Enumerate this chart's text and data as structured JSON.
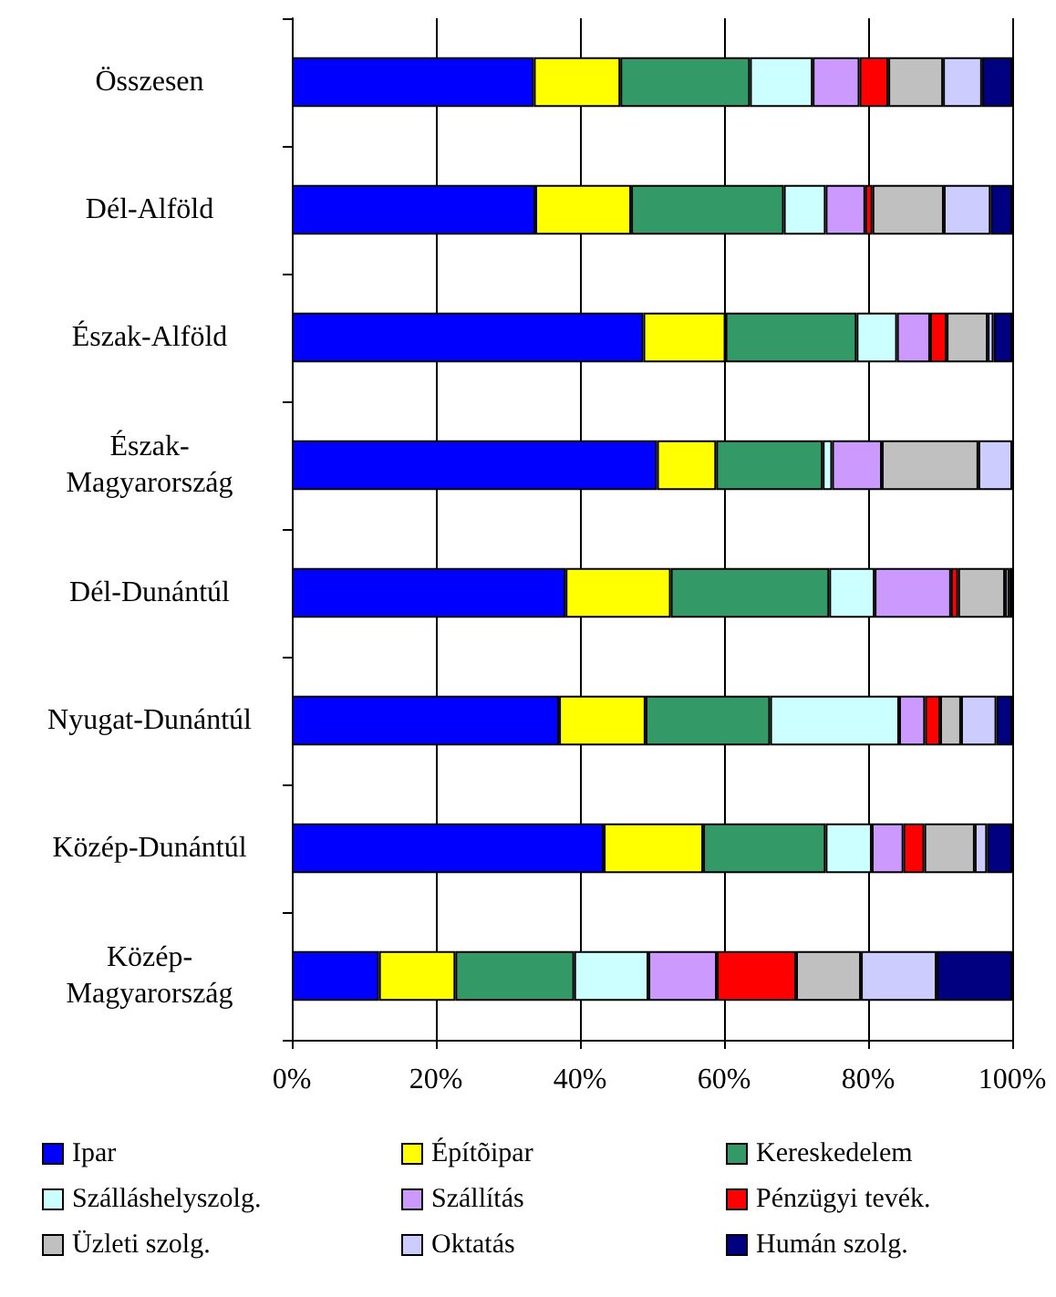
{
  "chart_data": {
    "type": "bar",
    "orientation": "horizontal",
    "stacked": true,
    "categories": [
      "Összesen",
      "Dél-Alföld",
      "Észak-Alföld",
      "Észak-Magyarország",
      "Dél-Dunántúl",
      "Nyugat-Dunántúl",
      "Közép-Dunántúl",
      "Közép-Magyarország"
    ],
    "series": [
      {
        "name": "Ipar",
        "color": "#0000ff",
        "values": [
          33.6,
          33.8,
          48.8,
          50.7,
          38.0,
          37.1,
          43.3,
          12.1
        ]
      },
      {
        "name": "Építõipar",
        "color": "#ffff00",
        "values": [
          12.0,
          13.3,
          11.4,
          8.2,
          14.6,
          12.0,
          13.8,
          10.6
        ]
      },
      {
        "name": "Kereskedelem",
        "color": "#339966",
        "values": [
          18.0,
          21.2,
          18.2,
          14.8,
          22.0,
          17.3,
          17.0,
          16.5
        ]
      },
      {
        "name": "Szálláshelyszolg.",
        "color": "#ccffff",
        "values": [
          8.7,
          5.8,
          5.6,
          1.3,
          6.3,
          17.9,
          6.4,
          10.3
        ]
      },
      {
        "name": "Szállítás",
        "color": "#cc99ff",
        "values": [
          6.5,
          5.5,
          4.6,
          6.9,
          10.6,
          3.6,
          4.4,
          9.5
        ]
      },
      {
        "name": "Pénzügyi tevék.",
        "color": "#ff0000",
        "values": [
          4.0,
          1.0,
          2.3,
          null,
          1.0,
          2.1,
          2.9,
          11.0
        ]
      },
      {
        "name": "Üzleti szolg.",
        "color": "#c0c0c0",
        "values": [
          7.6,
          9.9,
          5.7,
          13.4,
          6.5,
          2.9,
          7.0,
          9.0
        ]
      },
      {
        "name": "Oktatás",
        "color": "#ccccff",
        "values": [
          5.4,
          6.5,
          0.8,
          4.7,
          0.6,
          4.9,
          1.7,
          10.5
        ]
      },
      {
        "name": "Humán szolg.",
        "color": "#000080",
        "values": [
          4.2,
          3.0,
          2.6,
          null,
          0.4,
          2.2,
          3.5,
          10.5
        ]
      }
    ],
    "xlim": [
      0,
      100
    ],
    "xticks": [
      {
        "value": 0,
        "label": "0%"
      },
      {
        "value": 20,
        "label": "20%"
      },
      {
        "value": 40,
        "label": "40%"
      },
      {
        "value": 60,
        "label": "60%"
      },
      {
        "value": 80,
        "label": "80%"
      },
      {
        "value": 100,
        "label": "100%"
      }
    ],
    "grid": "x",
    "legend": "bottom"
  }
}
